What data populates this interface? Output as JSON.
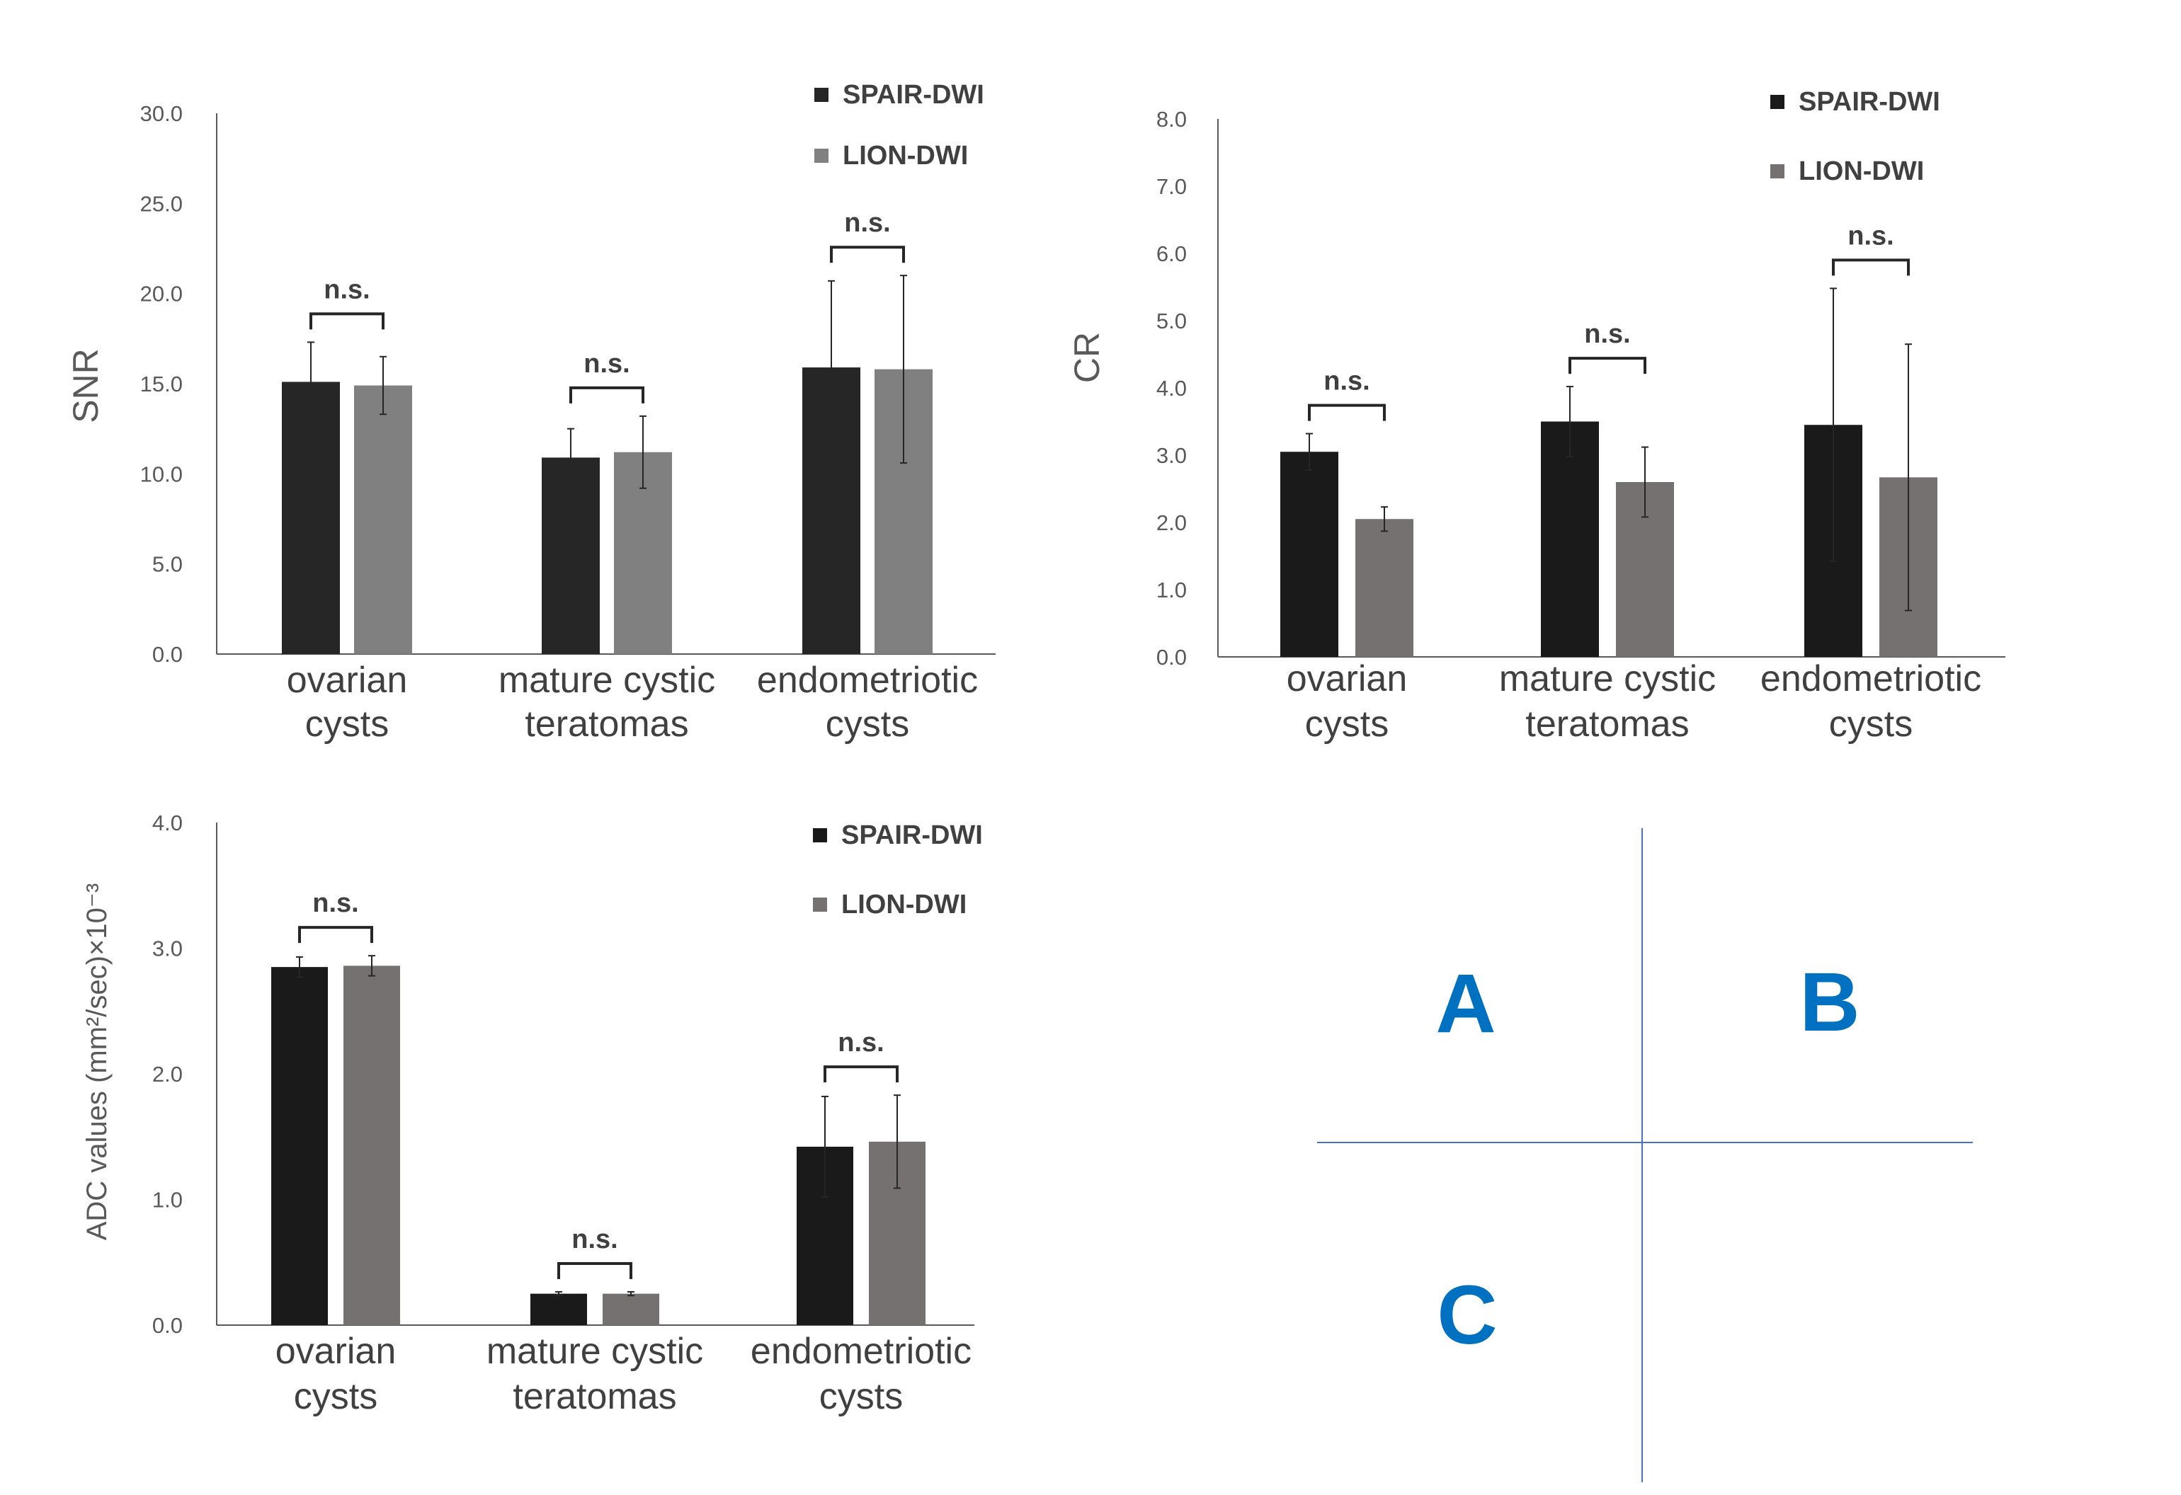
{
  "series_colors": {
    "panel_a": {
      "spair": "#262626",
      "lion": "#808080"
    },
    "panel_b": {
      "spair": "#1a1a1a",
      "lion": "#767171"
    },
    "panel_c": {
      "spair": "#1a1a1a",
      "lion": "#767171"
    }
  },
  "key": {
    "color": "#4472c4",
    "letters": [
      "A",
      "B",
      "C"
    ],
    "letter_color": "#0070c0"
  },
  "chart_data": [
    {
      "id": "A",
      "type": "bar",
      "title": "",
      "xlabel": "",
      "ylabel": "SNR",
      "ylim": [
        0,
        30
      ],
      "yticks": [
        "0.0",
        "5.0",
        "10.0",
        "15.0",
        "20.0",
        "25.0",
        "30.0"
      ],
      "categories": [
        [
          "ovarian",
          "cysts"
        ],
        [
          "mature cystic",
          "teratomas"
        ],
        [
          "endometriotic",
          "cysts"
        ]
      ],
      "series": [
        {
          "name": "SPAIR-DWI",
          "values": [
            15.1,
            10.9,
            15.9
          ],
          "err": [
            2.2,
            1.6,
            4.8
          ]
        },
        {
          "name": "LION-DWI",
          "values": [
            14.9,
            11.2,
            15.8
          ],
          "err": [
            1.6,
            2.0,
            5.2
          ]
        }
      ],
      "annotations": [
        "n.s.",
        "n.s.",
        "n.s."
      ],
      "legend": "top-right"
    },
    {
      "id": "B",
      "type": "bar",
      "title": "",
      "xlabel": "",
      "ylabel": "CR",
      "ylim": [
        0,
        8
      ],
      "yticks": [
        "0.0",
        "1.0",
        "2.0",
        "3.0",
        "4.0",
        "5.0",
        "6.0",
        "7.0",
        "8.0"
      ],
      "categories": [
        [
          "ovarian",
          "cysts"
        ],
        [
          "mature cystic",
          "teratomas"
        ],
        [
          "endometriotic",
          "cysts"
        ]
      ],
      "series": [
        {
          "name": "SPAIR-DWI",
          "values": [
            3.05,
            3.5,
            3.45
          ],
          "err": [
            0.27,
            0.52,
            2.03
          ]
        },
        {
          "name": "LION-DWI",
          "values": [
            2.05,
            2.6,
            2.67
          ],
          "err": [
            0.18,
            0.52,
            1.98
          ]
        }
      ],
      "annotations": [
        "n.s.",
        "n.s.",
        "n.s."
      ],
      "legend": "top-right"
    },
    {
      "id": "C",
      "type": "bar",
      "title": "",
      "xlabel": "",
      "ylabel": "ADC values (mm²/sec)×10⁻³",
      "ylim": [
        0,
        4
      ],
      "yticks": [
        "0.0",
        "1.0",
        "2.0",
        "3.0",
        "4.0"
      ],
      "categories": [
        [
          "ovarian",
          "cysts"
        ],
        [
          "mature cystic",
          "teratomas"
        ],
        [
          "endometriotic",
          "cysts"
        ]
      ],
      "series": [
        {
          "name": "SPAIR-DWI",
          "values": [
            2.85,
            0.25,
            1.42
          ],
          "err": [
            0.08,
            0.015,
            0.4
          ]
        },
        {
          "name": "LION-DWI",
          "values": [
            2.86,
            0.25,
            1.46
          ],
          "err": [
            0.08,
            0.015,
            0.37
          ]
        }
      ],
      "annotations": [
        "n.s.",
        "n.s.",
        "n.s."
      ],
      "legend": "top-right"
    }
  ]
}
